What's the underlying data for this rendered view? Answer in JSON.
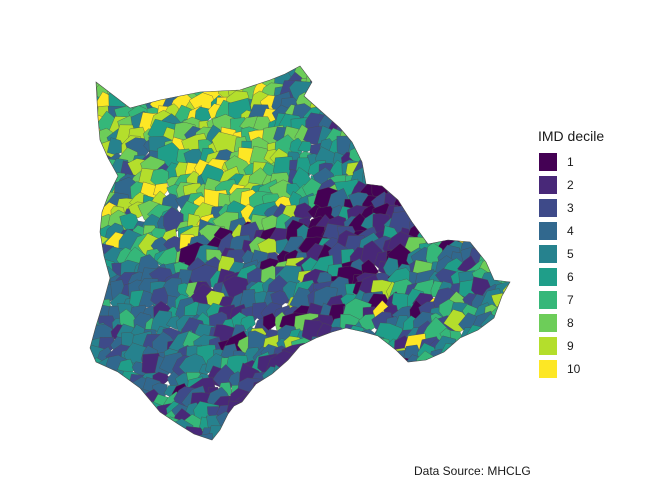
{
  "legend": {
    "title": "IMD decile",
    "items": [
      {
        "label": "1",
        "color": "#440154"
      },
      {
        "label": "2",
        "color": "#482878"
      },
      {
        "label": "3",
        "color": "#3E4A89"
      },
      {
        "label": "4",
        "color": "#31688E"
      },
      {
        "label": "5",
        "color": "#26828E"
      },
      {
        "label": "6",
        "color": "#1F9E89"
      },
      {
        "label": "7",
        "color": "#35B779"
      },
      {
        "label": "8",
        "color": "#6DCD59"
      },
      {
        "label": "9",
        "color": "#B4DE2C"
      },
      {
        "label": "10",
        "color": "#FDE725"
      }
    ]
  },
  "caption": "Data Source: MHCLG",
  "map": {
    "fill_variable": "IMD decile",
    "border_color": "#4d4d4d"
  }
}
